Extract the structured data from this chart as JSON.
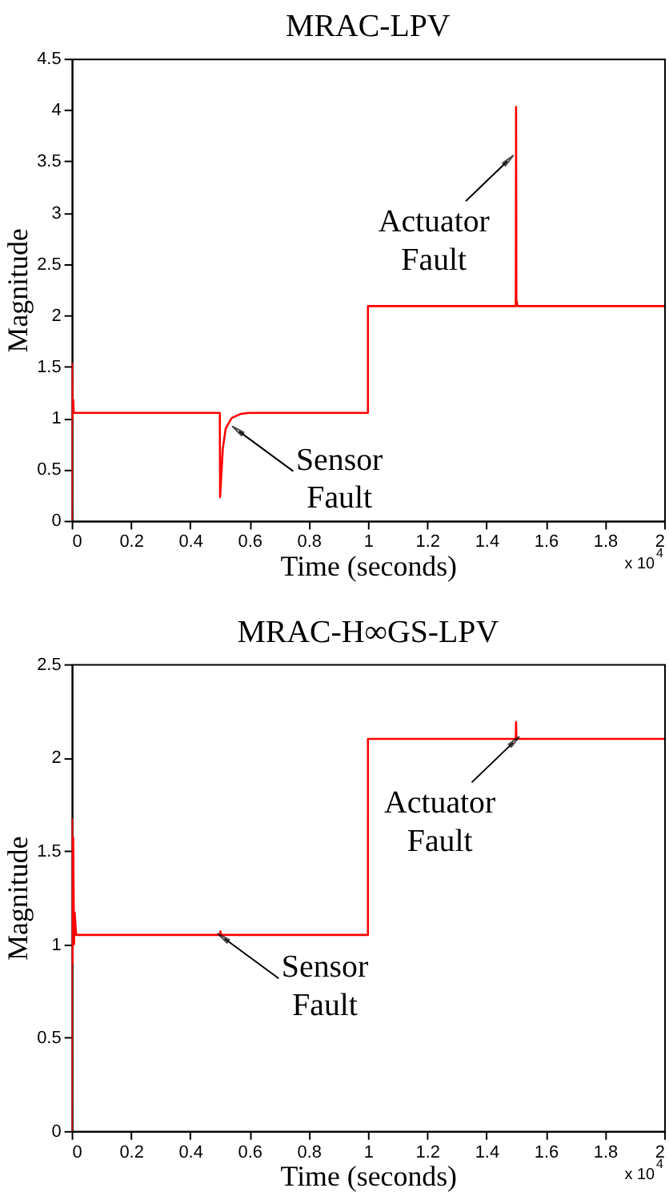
{
  "chart_data": [
    {
      "type": "line",
      "title": "MRAC-LPV",
      "xlabel": "Time (seconds)",
      "ylabel": "Magnitude",
      "x": [
        0,
        0.001,
        0.003,
        0.005,
        0.007,
        0.5,
        0.501,
        0.51,
        0.52,
        0.54,
        0.57,
        0.6,
        1.0,
        1.0,
        1.499,
        1.5,
        1.501,
        1.505,
        2
      ],
      "series": [
        {
          "color": "#ff0000",
          "values": [
            0,
            1.53,
            1.0,
            1.18,
            1.05,
            1.05,
            0.23,
            0.7,
            0.9,
            1.0,
            1.04,
            1.05,
            1.05,
            2.09,
            2.09,
            4.03,
            2.15,
            2.09,
            2.09
          ]
        }
      ],
      "xlim": [
        0,
        2
      ],
      "xticks": [
        0,
        0.2,
        0.4,
        0.6,
        0.8,
        1,
        1.2,
        1.4,
        1.6,
        1.8,
        2
      ],
      "ylim": [
        0,
        4.5
      ],
      "yticks": [
        0,
        0.5,
        1,
        1.5,
        2,
        2.5,
        3,
        3.5,
        4,
        4.5
      ],
      "annotations": [
        {
          "text": "Actuator\nFault",
          "x": 1.47,
          "y": 3.5
        },
        {
          "text": "Sensor\nFault",
          "x": 0.565,
          "y": 0.87
        },
        "x 10$^{4}$"
      ],
      "grid": false,
      "line_style": "solid",
      "marker": "none"
    },
    {
      "type": "line",
      "title": "MRAC-H∞GS-LPV",
      "xlabel": "Time (seconds)",
      "ylabel": "Magnitude",
      "x": [
        0,
        0.001,
        0.003,
        0.005,
        0.008,
        0.01,
        0.015,
        0.5,
        0.502,
        0.504,
        1.0,
        1.0,
        1.499,
        1.5,
        1.501,
        2
      ],
      "series": [
        {
          "color": "#ff0000",
          "values": [
            0,
            1.67,
            0.9,
            1.57,
            1.0,
            1.17,
            1.05,
            1.05,
            1.07,
            1.05,
            1.05,
            2.1,
            2.1,
            2.19,
            2.1,
            2.1
          ]
        }
      ],
      "xlim": [
        0,
        2
      ],
      "xticks": [
        0,
        0.2,
        0.4,
        0.6,
        0.8,
        1,
        1.2,
        1.4,
        1.6,
        1.8,
        2
      ],
      "ylim": [
        0,
        2.5
      ],
      "yticks": [
        0,
        0.5,
        1,
        1.5,
        2,
        2.5
      ],
      "annotations": [
        {
          "text": "Actuator\nFault",
          "x": 1.49,
          "y": 2.08
        },
        {
          "text": "Sensor\nFault",
          "x": 0.516,
          "y": 1.03
        },
        "x 10$^{4}$"
      ],
      "grid": false,
      "line_style": "solid",
      "marker": "none"
    }
  ]
}
